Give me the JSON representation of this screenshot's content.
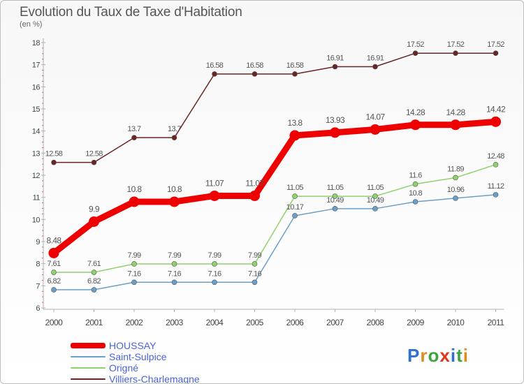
{
  "chart_data": {
    "type": "line",
    "title": "Evolution du Taux de Taxe d'Habitation",
    "subtitle": "(en %)",
    "x": [
      "2000",
      "2001",
      "2002",
      "2003",
      "2004",
      "2005",
      "2006",
      "2007",
      "2008",
      "2009",
      "2010",
      "2011"
    ],
    "ylim": [
      6,
      18
    ],
    "yticks": [
      "6",
      "7",
      "8",
      "9",
      "10",
      "11",
      "12",
      "13",
      "14",
      "15",
      "16",
      "17",
      "18"
    ],
    "grid": false,
    "legend_position": "bottom-left",
    "series": [
      {
        "name": "Villiers-Charlemagne",
        "color": "#6b2424",
        "values": [
          12.58,
          12.58,
          13.7,
          13.7,
          16.58,
          16.58,
          16.58,
          16.91,
          16.91,
          17.52,
          17.52,
          17.52
        ],
        "labels": [
          "12.58",
          "12.58",
          "13.7",
          "13.7",
          "16.58",
          "16.58",
          "16.58",
          "16.91",
          "16.91",
          "17.52",
          "17.52",
          "17.52"
        ]
      },
      {
        "name": "Origné",
        "color": "#8ed26b",
        "values": [
          7.61,
          7.61,
          7.99,
          7.99,
          7.99,
          7.99,
          11.05,
          11.05,
          11.05,
          11.6,
          11.89,
          12.48
        ],
        "labels": [
          "7.61",
          "7.61",
          "7.99",
          "7.99",
          "7.99",
          "7.99",
          "11.05",
          "11.05",
          "11.05",
          "11.6",
          "11.89",
          "12.48"
        ]
      },
      {
        "name": "Saint-Sulpice",
        "color": "#6a9fc9",
        "values": [
          6.82,
          6.82,
          7.16,
          7.16,
          7.16,
          7.16,
          10.17,
          10.49,
          10.49,
          10.8,
          10.96,
          11.12
        ],
        "labels": [
          "6.82",
          "6.82",
          "7.16",
          "7.16",
          "7.16",
          "7.16",
          "10.17",
          "10.49",
          "10.49",
          "10.8",
          "10.96",
          "11.12"
        ]
      },
      {
        "name": "HOUSSAY",
        "color": "#ee0000",
        "values": [
          8.48,
          9.9,
          10.8,
          10.8,
          11.07,
          11.07,
          13.8,
          13.93,
          14.07,
          14.28,
          14.28,
          14.42
        ],
        "labels": [
          "8.48",
          "9.9",
          "10.8",
          "10.8",
          "11.07",
          "11.07",
          "13.8",
          "13.93",
          "14.07",
          "14.28",
          "14.28",
          "14.42"
        ]
      }
    ]
  },
  "legend": {
    "items": [
      {
        "name": "HOUSSAY",
        "color": "#ee0000"
      },
      {
        "name": "Saint-Sulpice",
        "color": "#6a9fc9"
      },
      {
        "name": "Origné",
        "color": "#8ed26b"
      },
      {
        "name": "Villiers-Charlemagne",
        "color": "#6b2424"
      }
    ]
  },
  "logo": {
    "text": "Proxiti",
    "letters": [
      "P",
      "r",
      "o",
      "x",
      "i",
      "t",
      "i"
    ],
    "colors": [
      "#2f6fd0",
      "#e08b1b",
      "#3fa33f",
      "#e0341b",
      "#2f6fd0",
      "#3fa33f",
      "#e08b1b"
    ]
  }
}
